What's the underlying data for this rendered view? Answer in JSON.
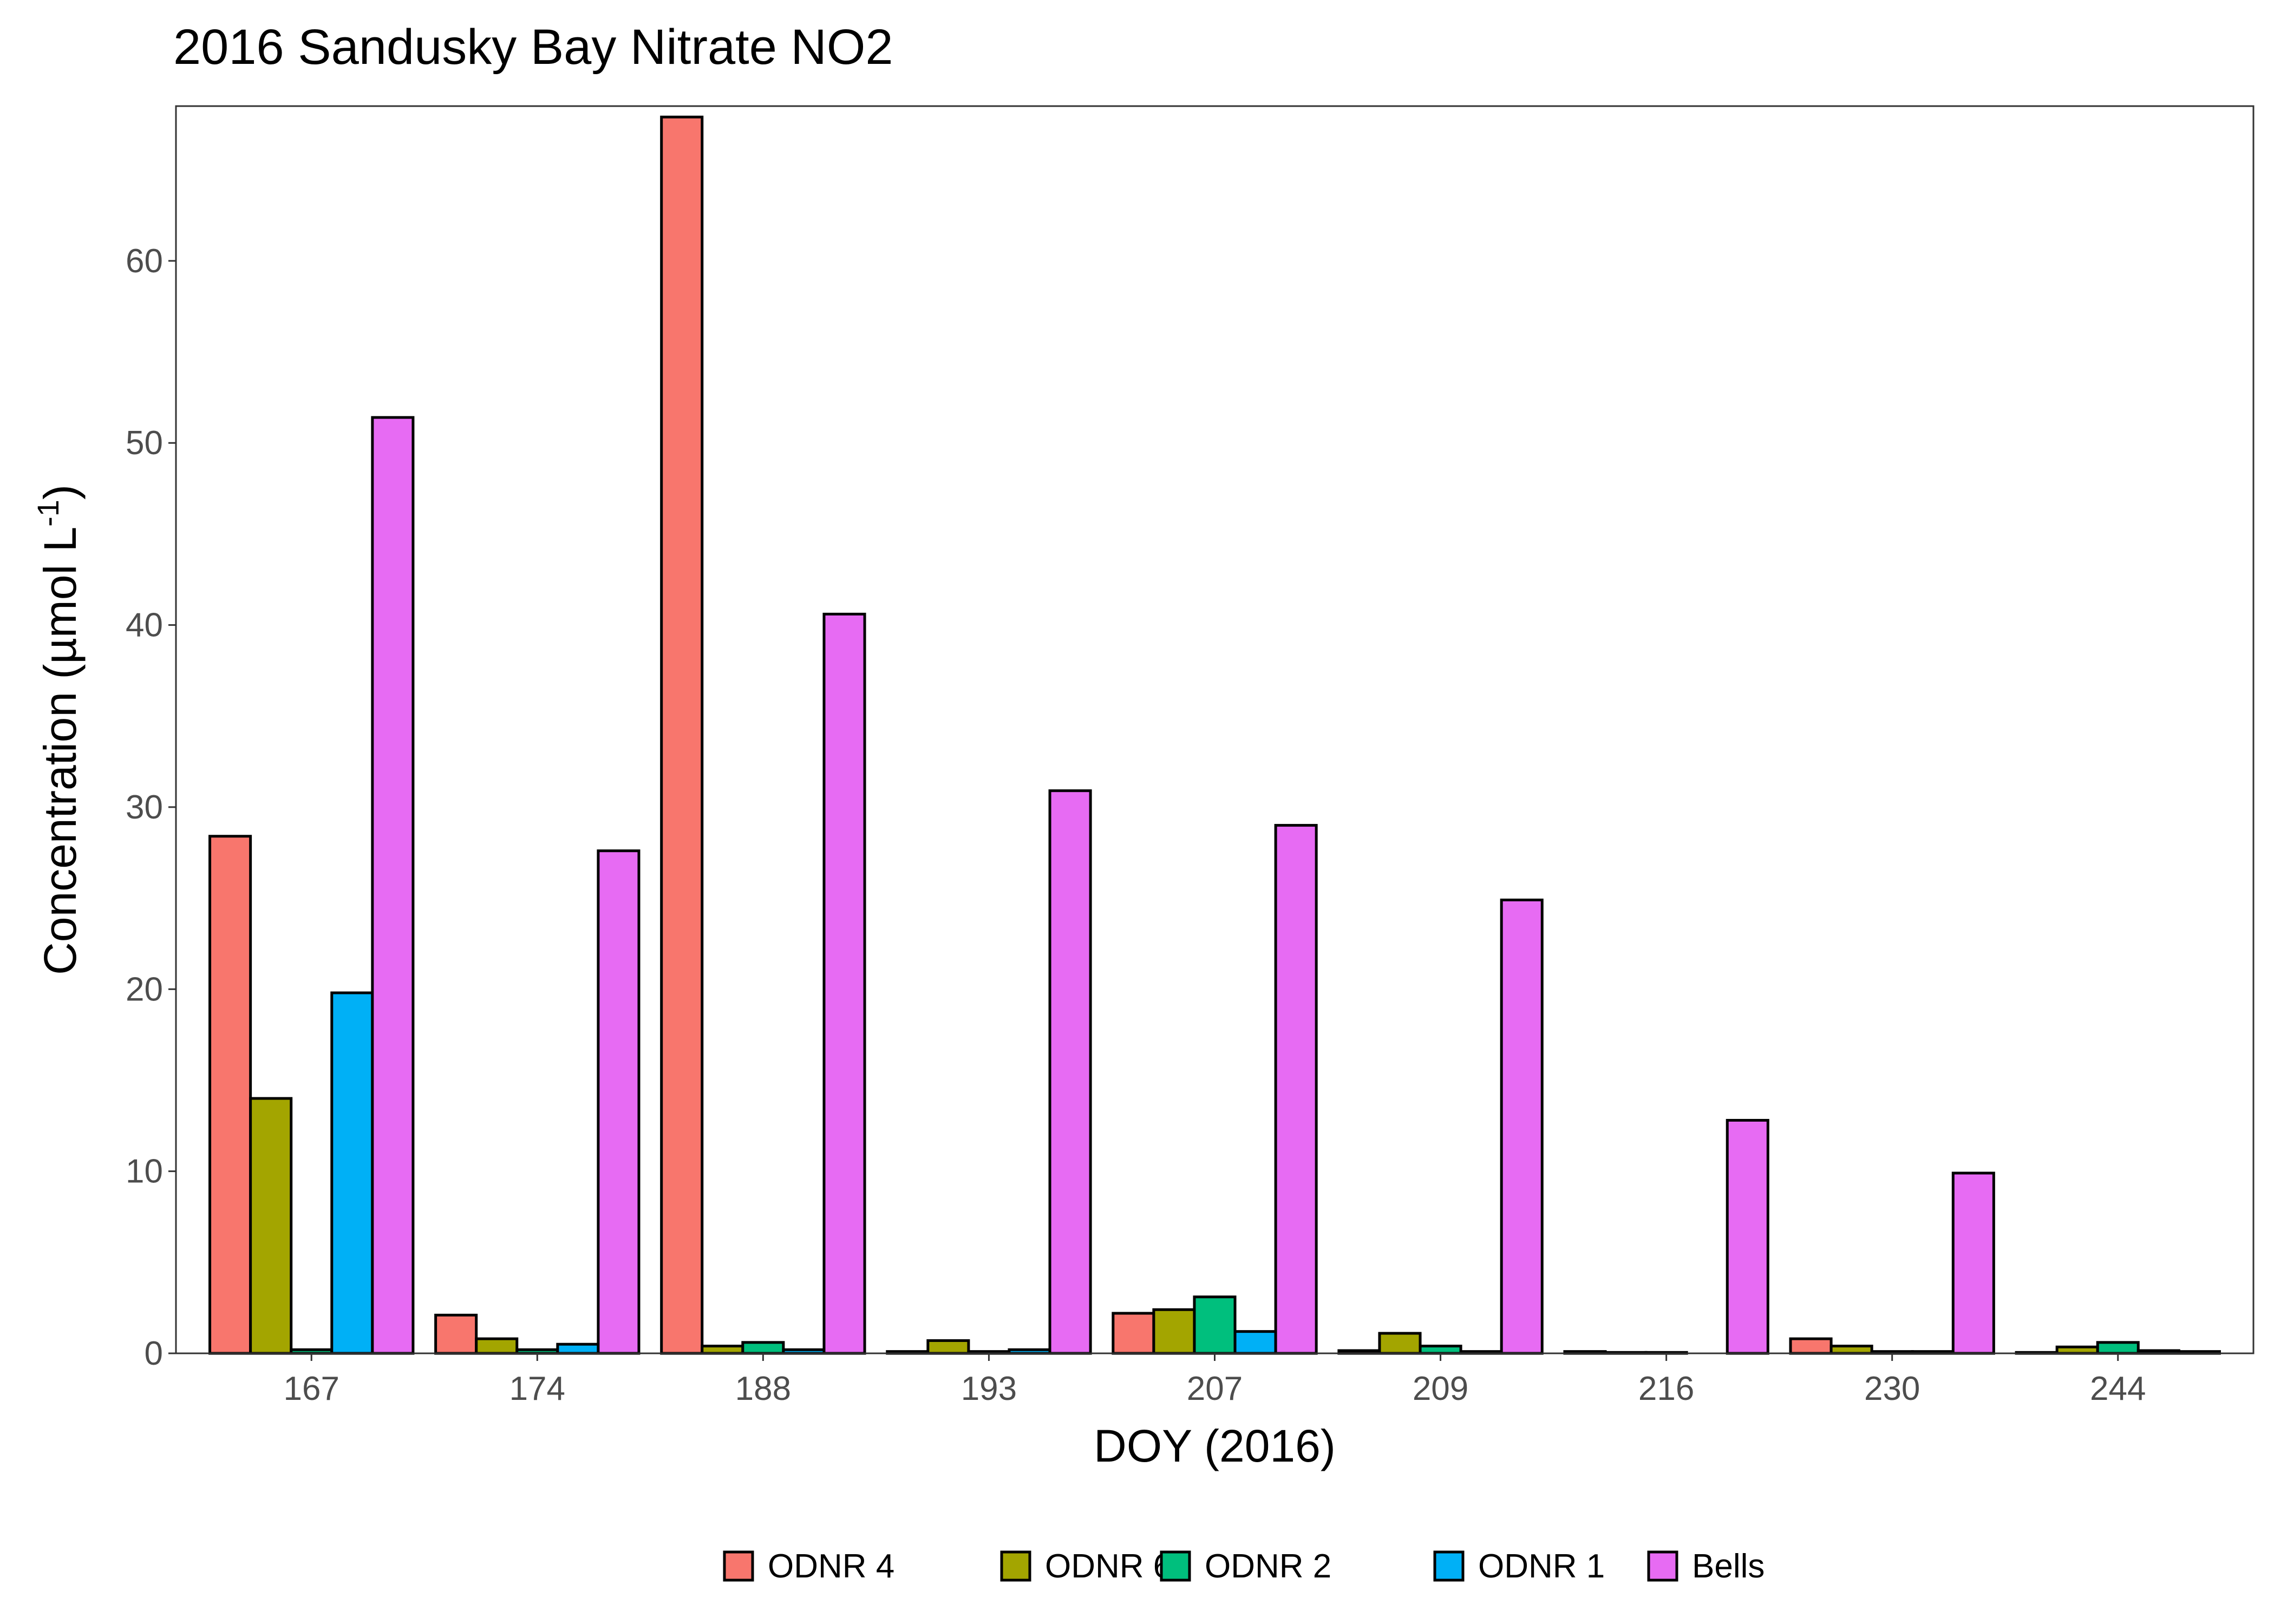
{
  "chart_data": {
    "type": "bar",
    "title": "2016 Sandusky Bay Nitrate NO2",
    "xlabel": "DOY (2016)",
    "ylabel": "Concentration (µmol L",
    "ylabel_sup": "-1",
    "ylabel_close": ")",
    "ylim": [
      0,
      68.5
    ],
    "yticks": [
      0,
      10,
      20,
      30,
      40,
      50,
      60
    ],
    "grid": false,
    "legend_position": "bottom",
    "categories": [
      "167",
      "174",
      "188",
      "193",
      "207",
      "209",
      "216",
      "230",
      "244"
    ],
    "series": [
      {
        "name": "ODNR 4",
        "color": "#F8766D",
        "values": [
          28.4,
          2.1,
          67.9,
          0.1,
          2.2,
          0.15,
          0.1,
          0.8,
          0.05
        ]
      },
      {
        "name": "ODNR 6",
        "color": "#A3A500",
        "values": [
          14.0,
          0.8,
          0.4,
          0.7,
          2.4,
          1.1,
          0.05,
          0.4,
          0.35
        ]
      },
      {
        "name": "ODNR 2",
        "color": "#00BF7D",
        "values": [
          0.2,
          0.2,
          0.6,
          0.1,
          3.1,
          0.4,
          0.05,
          0.1,
          0.6
        ]
      },
      {
        "name": "ODNR 1",
        "color": "#00B0F6",
        "values": [
          19.8,
          0.5,
          0.2,
          0.2,
          1.2,
          0.1,
          0.0,
          0.1,
          0.15
        ]
      },
      {
        "name": "Bells",
        "color": "#E76BF3",
        "values": [
          51.4,
          27.6,
          40.6,
          30.9,
          29.0,
          24.9,
          12.8,
          9.9,
          0.1
        ]
      }
    ]
  }
}
